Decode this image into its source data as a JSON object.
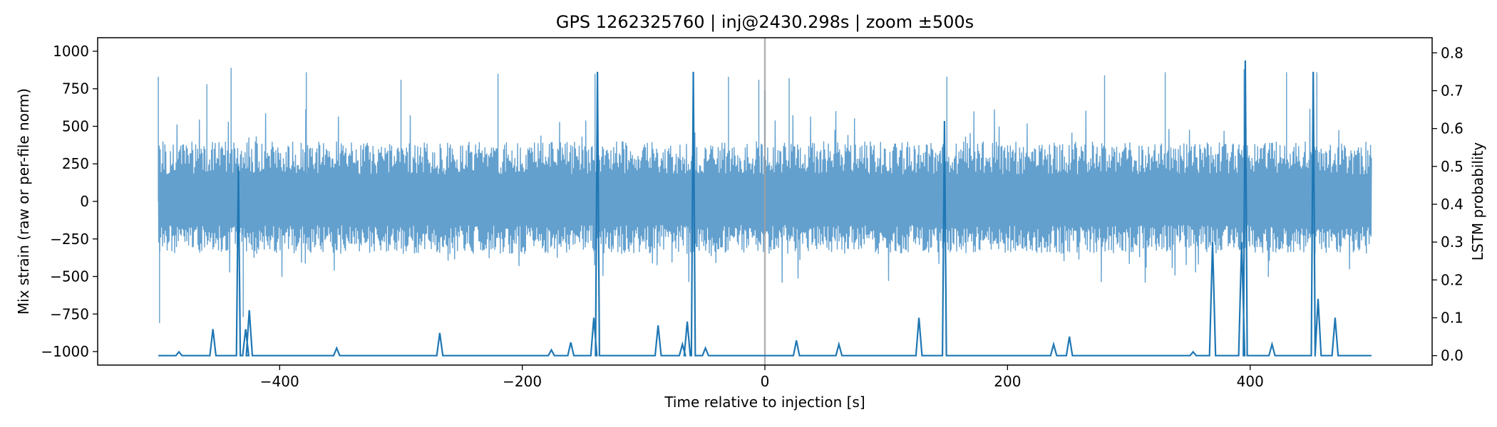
{
  "chart_data": {
    "type": "line",
    "title": "GPS 1262325760 | inj@2430.298s | zoom ±500s",
    "xlabel": "Time relative to injection [s]",
    "ylabel_left": "Mix strain (raw or per-file norm)",
    "ylabel_right": "LSTM probability",
    "xlim": [
      -550,
      550
    ],
    "ylim_left": [
      -1090,
      1090
    ],
    "ylim_right": [
      -0.025,
      0.84
    ],
    "x_ticks": [
      -400,
      -200,
      0,
      200,
      400
    ],
    "x_tick_labels": [
      "−400",
      "−200",
      "0",
      "200",
      "400"
    ],
    "y_left_ticks": [
      -1000,
      -750,
      -500,
      -250,
      0,
      250,
      500,
      750,
      1000
    ],
    "y_left_tick_labels": [
      "−1000",
      "−750",
      "−500",
      "−250",
      "0",
      "250",
      "500",
      "750",
      "1000"
    ],
    "y_right_ticks": [
      0.0,
      0.1,
      0.2,
      0.3,
      0.4,
      0.5,
      0.6,
      0.7,
      0.8
    ],
    "y_right_tick_labels": [
      "0.0",
      "0.1",
      "0.2",
      "0.3",
      "0.4",
      "0.5",
      "0.6",
      "0.7",
      "0.8"
    ],
    "injection_marker_x": 0,
    "grid": false,
    "colors": {
      "strain": "#5b9bcb",
      "prob": "#1f77b4",
      "marker": "#a0a0a0"
    },
    "series": [
      {
        "axis": "left",
        "x_range": [
          -500,
          500
        ],
        "typical_envelope": [
          -350,
          400
        ],
        "peaks": [
          [
            -500,
            830
          ],
          [
            -499,
            -810
          ],
          [
            -460,
            780
          ],
          [
            -440,
            890
          ],
          [
            -430,
            -770
          ],
          [
            -378,
            860
          ],
          [
            -300,
            810
          ],
          [
            -220,
            850
          ],
          [
            -140,
            850
          ],
          [
            -30,
            830
          ],
          [
            -5,
            810
          ],
          [
            0,
            740
          ],
          [
            20,
            820
          ],
          [
            150,
            830
          ],
          [
            280,
            840
          ],
          [
            330,
            860
          ],
          [
            395,
            880
          ],
          [
            430,
            860
          ],
          [
            455,
            860
          ]
        ]
      },
      {
        "axis": "right",
        "baseline": 0.0,
        "peaks": [
          [
            -483,
            0.01
          ],
          [
            -455,
            0.07
          ],
          [
            -434,
            0.5
          ],
          [
            -428,
            0.07
          ],
          [
            -425,
            0.12
          ],
          [
            -353,
            0.02
          ],
          [
            -268,
            0.06
          ],
          [
            -176,
            0.015
          ],
          [
            -160,
            0.035
          ],
          [
            -141,
            0.1
          ],
          [
            -138,
            0.75
          ],
          [
            -88,
            0.08
          ],
          [
            -68,
            0.03
          ],
          [
            -64,
            0.09
          ],
          [
            -59,
            0.75
          ],
          [
            -49,
            0.02
          ],
          [
            26,
            0.04
          ],
          [
            61,
            0.03
          ],
          [
            127,
            0.1
          ],
          [
            148,
            0.62
          ],
          [
            238,
            0.03
          ],
          [
            251,
            0.05
          ],
          [
            353,
            0.01
          ],
          [
            369,
            0.3
          ],
          [
            393,
            0.3
          ],
          [
            396,
            0.78
          ],
          [
            418,
            0.03
          ],
          [
            452,
            0.75
          ],
          [
            456,
            0.15
          ],
          [
            470,
            0.1
          ]
        ]
      }
    ]
  }
}
